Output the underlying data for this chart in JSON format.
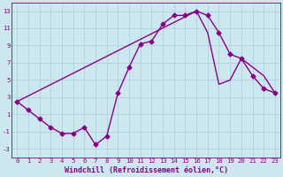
{
  "xlabel": "Windchill (Refroidissement éolien,°C)",
  "background_color": "#cce8ee",
  "line_color": "#880088",
  "grid_color": "#aaccdd",
  "xlim_min": -0.5,
  "xlim_max": 23.5,
  "ylim_min": -4,
  "ylim_max": 14,
  "xticks": [
    0,
    1,
    2,
    3,
    4,
    5,
    6,
    7,
    8,
    9,
    10,
    11,
    12,
    13,
    14,
    15,
    16,
    17,
    18,
    19,
    20,
    21,
    22,
    23
  ],
  "yticks": [
    -3,
    -1,
    1,
    3,
    5,
    7,
    9,
    11,
    13
  ],
  "x": [
    0,
    1,
    2,
    3,
    4,
    5,
    6,
    7,
    8,
    9,
    10,
    11,
    12,
    13,
    14,
    15,
    16,
    17,
    18,
    19,
    20,
    21,
    22,
    23,
    23,
    22,
    21,
    20,
    19,
    18,
    17,
    16,
    0
  ],
  "y": [
    2.5,
    1.5,
    0.5,
    -0.5,
    -1.2,
    -1.2,
    -0.5,
    -2.5,
    -1.5,
    3.5,
    6.5,
    9.2,
    9.5,
    11.5,
    12.5,
    12.5,
    13.0,
    12.5,
    10.5,
    8.0,
    7.5,
    5.5,
    4.0,
    3.5,
    3.5,
    5.5,
    6.5,
    7.5,
    5.0,
    4.5,
    10.5,
    13.0,
    2.5
  ],
  "has_markers_at": [
    0,
    1,
    2,
    3,
    4,
    5,
    6,
    7,
    8,
    9,
    10,
    11,
    12,
    13,
    14,
    15,
    16,
    17,
    18,
    19,
    20,
    21,
    22,
    23
  ],
  "marker": "D",
  "markersize": 2.5,
  "linewidth": 1.0,
  "tick_fontsize": 5.2,
  "xlabel_fontsize": 6.0
}
